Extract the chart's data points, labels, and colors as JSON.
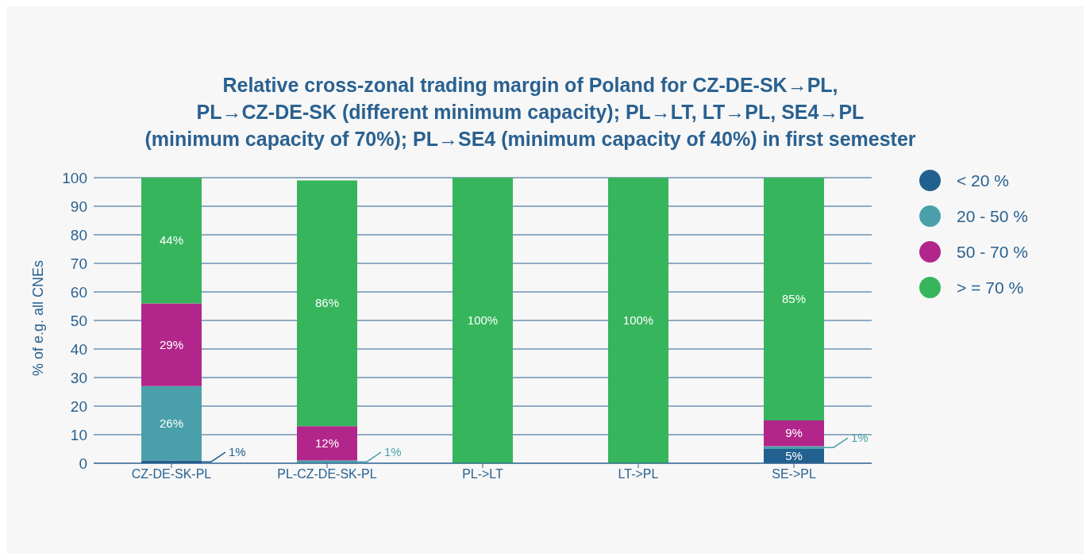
{
  "chart_data": {
    "type": "bar",
    "stacked": true,
    "title": "Relative cross-zonal trading margin of Poland for CZ-DE-SK→PL,\nPL→CZ-DE-SK (different minimum capacity); PL→LT, LT→PL, SE4→PL\n(minimum capacity of 70%); PL→SE4 (minimum capacity of 40%) in first semester",
    "ylabel": "% of e.g. all CNEs",
    "categories": [
      "CZ-DE-SK-PL",
      "PL-CZ-DE-SK-PL",
      "PL->LT",
      "LT->PL",
      "SE->PL"
    ],
    "series": [
      {
        "name": "< 20 %",
        "color": "#22608f",
        "values": [
          1,
          null,
          null,
          null,
          5
        ],
        "value_labels": [
          "1%",
          null,
          null,
          null,
          "5%"
        ]
      },
      {
        "name": "20 - 50 %",
        "color": "#4aa0aa",
        "values": [
          26,
          1,
          null,
          null,
          1
        ],
        "value_labels": [
          "26%",
          "1%",
          null,
          null,
          "1%"
        ]
      },
      {
        "name": "50 - 70 %",
        "color": "#b2268b",
        "values": [
          29,
          12,
          null,
          null,
          9
        ],
        "value_labels": [
          "29%",
          "12%",
          null,
          null,
          "9%"
        ]
      },
      {
        "name": "> = 70 %",
        "color": "#36b55c",
        "values": [
          44,
          86,
          100,
          100,
          85
        ],
        "value_labels": [
          "44%",
          "86%",
          "100%",
          "100%",
          "85%"
        ]
      }
    ],
    "ylim": [
      0,
      100
    ],
    "yticks": [
      0,
      10,
      20,
      30,
      40,
      50,
      60,
      70,
      80,
      90,
      100
    ],
    "grid": "y",
    "legend": "right"
  }
}
